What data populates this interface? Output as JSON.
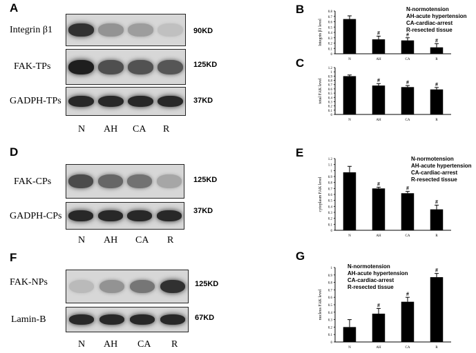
{
  "panels": {
    "A": {
      "letter": "A",
      "rows": [
        {
          "label": "Integrin β1",
          "kd": "90KD",
          "intensity": [
            0.85,
            0.35,
            0.3,
            0.12
          ]
        },
        {
          "label": "FAK-TPs",
          "kd": "125KD",
          "intensity": [
            0.95,
            0.7,
            0.68,
            0.66
          ]
        },
        {
          "label": "GADPH-TPs",
          "kd": "37KD",
          "intensity": [
            0.9,
            0.9,
            0.9,
            0.9
          ]
        }
      ],
      "lanes": [
        "N",
        "AH",
        "CA",
        "R"
      ]
    },
    "D": {
      "letter": "D",
      "rows": [
        {
          "label": "FAK-CPs",
          "kd": "125KD",
          "intensity": [
            0.72,
            0.58,
            0.52,
            0.25
          ]
        },
        {
          "label": "GADPH-CPs",
          "kd": "37KD",
          "intensity": [
            0.9,
            0.9,
            0.9,
            0.9
          ]
        }
      ],
      "lanes": [
        "N",
        "AH",
        "CA",
        "R"
      ]
    },
    "F": {
      "letter": "F",
      "rows": [
        {
          "label": "FAK-NPs",
          "kd": "125KD",
          "intensity": [
            0.15,
            0.35,
            0.5,
            0.85
          ]
        },
        {
          "label": "Lamin-B",
          "kd": "67KD",
          "intensity": [
            0.9,
            0.9,
            0.9,
            0.9
          ]
        }
      ],
      "lanes": [
        "N",
        "AH",
        "CA",
        "R"
      ]
    }
  },
  "chart_data": [
    {
      "panel": "B",
      "type": "bar",
      "categories": [
        "N",
        "AH",
        "CA",
        "R"
      ],
      "values": [
        0.65,
        0.27,
        0.25,
        0.12
      ],
      "errors": [
        0.06,
        0.06,
        0.05,
        0.07
      ],
      "significance": [
        "",
        "#",
        "#",
        "#"
      ],
      "ylabel": "Integrin β1 level",
      "yticks": [
        "0",
        "0.1",
        "0.2",
        "0.3",
        "0.4",
        "0.5",
        "0.6",
        "0.7",
        "0.8"
      ],
      "ylim": [
        0,
        0.8
      ],
      "legend": [
        "N-normotension",
        "AH-acute hypertension",
        "CA-cardiac-arrest",
        "R-resected tissue"
      ],
      "legend_position": "top-right"
    },
    {
      "panel": "C",
      "type": "bar",
      "categories": [
        "N",
        "AH",
        "CA",
        "R"
      ],
      "values": [
        0.98,
        0.74,
        0.7,
        0.64
      ],
      "errors": [
        0.03,
        0.05,
        0.04,
        0.05
      ],
      "significance": [
        "",
        "#",
        "#",
        "#"
      ],
      "ylabel": "total FAK level",
      "yticks": [
        "0",
        "0.1",
        "0.2",
        "0.3",
        "0.4",
        "0.5",
        "0.6",
        "0.7",
        "0.8",
        "0.9",
        "1",
        "1.2"
      ],
      "ylim": [
        0,
        1.2
      ]
    },
    {
      "panel": "E",
      "type": "bar",
      "categories": [
        "N",
        "AH",
        "CA",
        "R"
      ],
      "values": [
        0.97,
        0.7,
        0.62,
        0.35
      ],
      "errors": [
        0.1,
        0.02,
        0.03,
        0.07
      ],
      "significance": [
        "",
        "#",
        "#",
        "#"
      ],
      "ylabel": "cytoplasm FAK level",
      "yticks": [
        "0",
        "0.1",
        "0.2",
        "0.3",
        "0.4",
        "0.5",
        "0.6",
        "0.7",
        "0.8",
        "0.9",
        "1",
        "1.1",
        "1.2"
      ],
      "ylim": [
        0,
        1.2
      ],
      "legend": [
        "N-normotension",
        "AH-acute hypertension",
        "CA-cardiac-arrest",
        "R-resected tissue"
      ],
      "legend_position": "top-right"
    },
    {
      "panel": "G",
      "type": "bar",
      "categories": [
        "N",
        "AH",
        "CA",
        "R"
      ],
      "values": [
        0.2,
        0.38,
        0.54,
        0.87
      ],
      "errors": [
        0.1,
        0.07,
        0.06,
        0.05
      ],
      "significance": [
        "",
        "#",
        "#",
        "#"
      ],
      "ylabel": "nucleus FAK level",
      "yticks": [
        "0",
        "0.1",
        "0.2",
        "0.3",
        "0.4",
        "0.5",
        "0.6",
        "0.7",
        "0.8",
        "0.9",
        "1"
      ],
      "ylim": [
        0,
        1
      ],
      "legend": [
        "N-normotension",
        "AH-acute hypertension",
        "CA-cardiac-arrest",
        "R-resected tissue"
      ],
      "legend_position": "top-left"
    }
  ]
}
